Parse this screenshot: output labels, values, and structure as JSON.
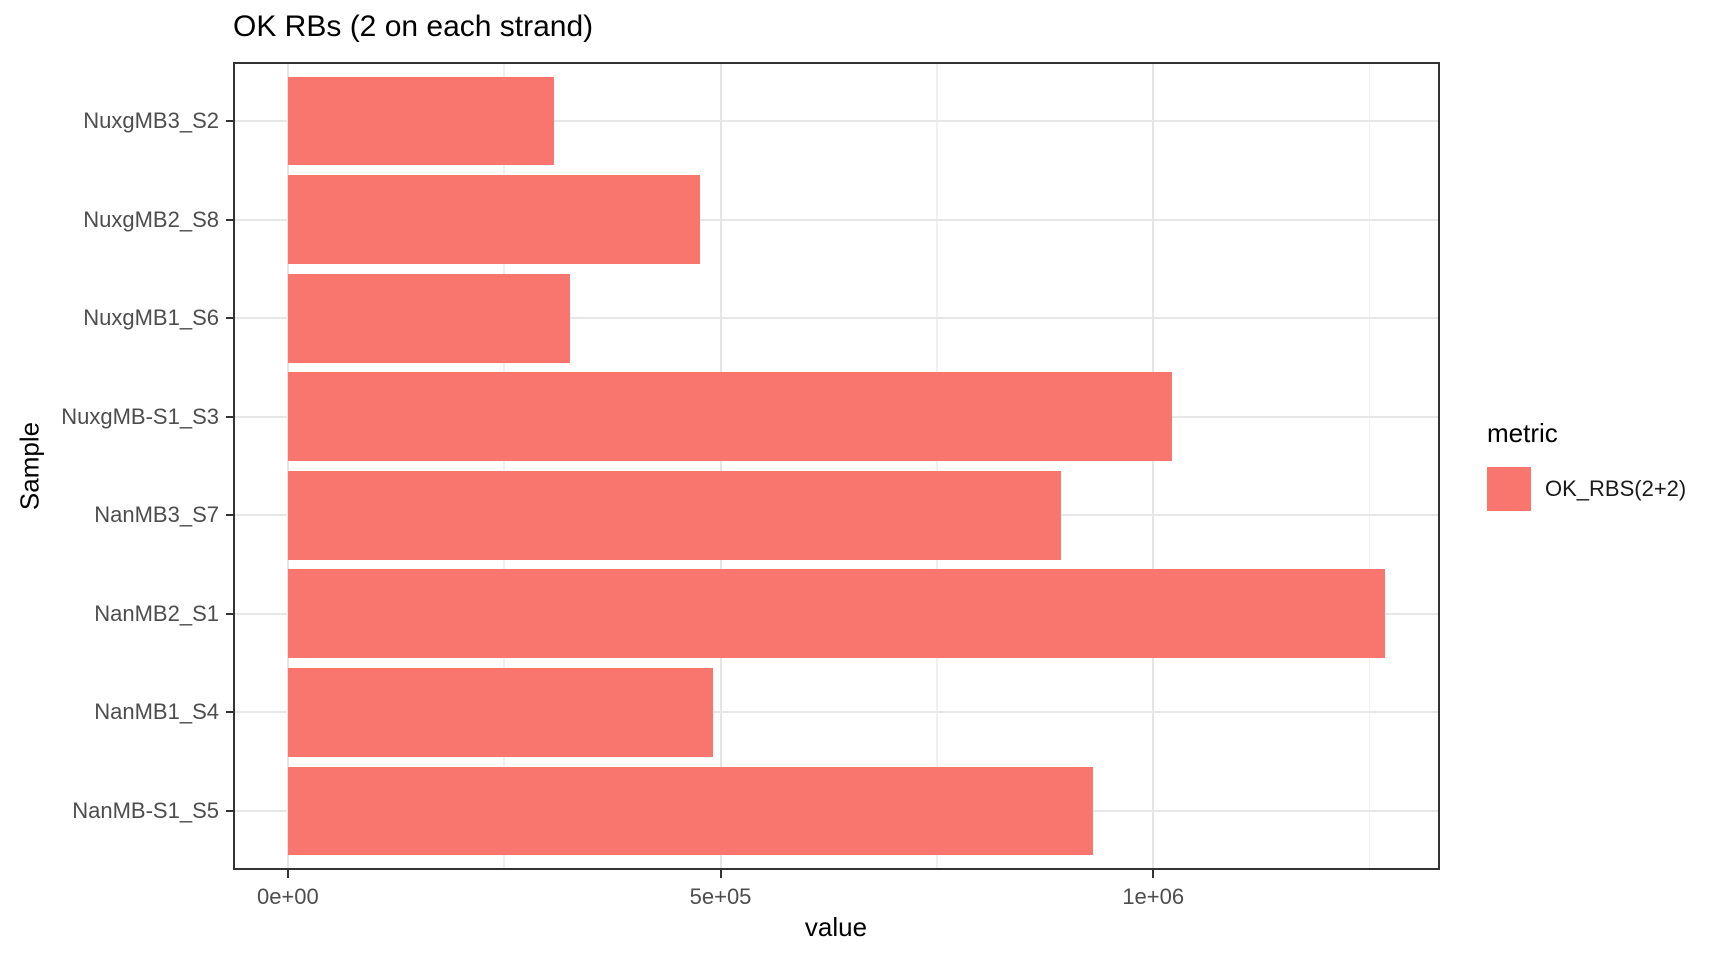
{
  "title": "OK RBs (2 on each strand)",
  "axes": {
    "x_label": "value",
    "y_label": "Sample"
  },
  "legend": {
    "title": "metric",
    "items": [
      {
        "label": "OK_RBS(2+2)",
        "color": "#F8766D"
      }
    ]
  },
  "colors": {
    "bar": "#F8766D",
    "panel_border": "#333333",
    "gridline_major": "#e5e5e5",
    "gridline_minor": "#f0f0f0",
    "tick_text": "#4D4D4D"
  },
  "chart_data": {
    "type": "bar",
    "orientation": "horizontal",
    "title": "OK RBs (2 on each strand)",
    "xlabel": "value",
    "ylabel": "Sample",
    "categories": [
      "NuxgMB3_S2",
      "NuxgMB2_S8",
      "NuxgMB1_S6",
      "NuxgMB-S1_S3",
      "NanMB3_S7",
      "NanMB2_S1",
      "NanMB1_S4",
      "NanMB-S1_S5"
    ],
    "series": [
      {
        "name": "OK_RBS(2+2)",
        "color": "#F8766D",
        "values": [
          307000,
          476000,
          326000,
          1022000,
          894000,
          1268000,
          491000,
          930000
        ]
      }
    ],
    "x_ticks": [
      {
        "value": 0,
        "label": "0e+00"
      },
      {
        "value": 500000,
        "label": "5e+05"
      },
      {
        "value": 1000000,
        "label": "1e+06"
      }
    ],
    "x_minor_ticks": [
      250000,
      750000,
      1250000
    ],
    "xlim": [
      -63400,
      1331400
    ],
    "grid": true,
    "legend_position": "right",
    "bar_width_fraction": 0.9,
    "category_expand": 0.6
  }
}
